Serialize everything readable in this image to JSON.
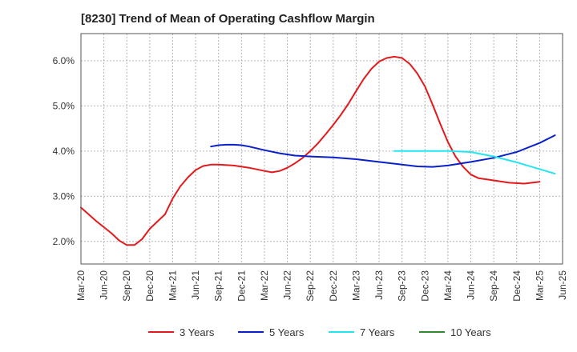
{
  "title": "[8230]  Trend of Mean of Operating Cashflow Margin",
  "chart_data": {
    "type": "line",
    "title": "[8230]  Trend of Mean of Operating Cashflow Margin",
    "xlabel": "",
    "ylabel": "",
    "x_ticks": [
      "Mar-20",
      "Jun-20",
      "Sep-20",
      "Dec-20",
      "Mar-21",
      "Jun-21",
      "Sep-21",
      "Dec-21",
      "Mar-22",
      "Jun-22",
      "Sep-22",
      "Dec-22",
      "Mar-23",
      "Jun-23",
      "Sep-23",
      "Dec-23",
      "Mar-24",
      "Jun-24",
      "Sep-24",
      "Dec-24",
      "Mar-25",
      "Jun-25"
    ],
    "y_ticks": [
      "2.0%",
      "3.0%",
      "4.0%",
      "5.0%",
      "6.0%"
    ],
    "ylim": [
      1.5,
      6.6
    ],
    "grid": true,
    "legend_position": "bottom",
    "series": [
      {
        "name": "3 Years",
        "color": "#e31a1c",
        "points": [
          [
            "Mar-20",
            2.75
          ],
          [
            "May-20",
            2.45
          ],
          [
            "Jul-20",
            2.18
          ],
          [
            "Aug-20",
            2.02
          ],
          [
            "Sep-20",
            1.92
          ],
          [
            "Oct-20",
            1.92
          ],
          [
            "Nov-20",
            2.05
          ],
          [
            "Dec-20",
            2.28
          ],
          [
            "Feb-21",
            2.6
          ],
          [
            "Mar-21",
            2.95
          ],
          [
            "Apr-21",
            3.22
          ],
          [
            "May-21",
            3.42
          ],
          [
            "Jun-21",
            3.58
          ],
          [
            "Jul-21",
            3.67
          ],
          [
            "Aug-21",
            3.7
          ],
          [
            "Sep-21",
            3.7
          ],
          [
            "Nov-21",
            3.68
          ],
          [
            "Jan-22",
            3.63
          ],
          [
            "Mar-22",
            3.56
          ],
          [
            "Apr-22",
            3.53
          ],
          [
            "May-22",
            3.56
          ],
          [
            "Jun-22",
            3.63
          ],
          [
            "Jul-22",
            3.73
          ],
          [
            "Aug-22",
            3.85
          ],
          [
            "Sep-22",
            4.0
          ],
          [
            "Oct-22",
            4.17
          ],
          [
            "Nov-22",
            4.37
          ],
          [
            "Dec-22",
            4.58
          ],
          [
            "Jan-23",
            4.8
          ],
          [
            "Feb-23",
            5.05
          ],
          [
            "Mar-23",
            5.33
          ],
          [
            "Apr-23",
            5.6
          ],
          [
            "May-23",
            5.82
          ],
          [
            "Jun-23",
            5.98
          ],
          [
            "Jul-23",
            6.06
          ],
          [
            "Aug-23",
            6.09
          ],
          [
            "Sep-23",
            6.06
          ],
          [
            "Oct-23",
            5.93
          ],
          [
            "Nov-23",
            5.72
          ],
          [
            "Dec-23",
            5.43
          ],
          [
            "Jan-24",
            5.03
          ],
          [
            "Feb-24",
            4.6
          ],
          [
            "Mar-24",
            4.2
          ],
          [
            "Apr-24",
            3.88
          ],
          [
            "May-24",
            3.65
          ],
          [
            "Jun-24",
            3.48
          ],
          [
            "Jul-24",
            3.4
          ],
          [
            "Sep-24",
            3.35
          ],
          [
            "Nov-24",
            3.3
          ],
          [
            "Jan-25",
            3.28
          ],
          [
            "Mar-25",
            3.32
          ]
        ]
      },
      {
        "name": "5 Years",
        "color": "#0a1fcc",
        "points": [
          [
            "Aug-21",
            4.1
          ],
          [
            "Sep-21",
            4.13
          ],
          [
            "Oct-21",
            4.14
          ],
          [
            "Nov-21",
            4.14
          ],
          [
            "Dec-21",
            4.13
          ],
          [
            "Jan-22",
            4.1
          ],
          [
            "Mar-22",
            4.02
          ],
          [
            "May-22",
            3.95
          ],
          [
            "Jul-22",
            3.9
          ],
          [
            "Sep-22",
            3.88
          ],
          [
            "Dec-22",
            3.86
          ],
          [
            "Mar-23",
            3.82
          ],
          [
            "Jun-23",
            3.76
          ],
          [
            "Sep-23",
            3.7
          ],
          [
            "Nov-23",
            3.66
          ],
          [
            "Jan-24",
            3.65
          ],
          [
            "Mar-24",
            3.68
          ],
          [
            "Jun-24",
            3.76
          ],
          [
            "Sep-24",
            3.85
          ],
          [
            "Dec-24",
            3.98
          ],
          [
            "Mar-25",
            4.18
          ],
          [
            "May-25",
            4.35
          ]
        ]
      },
      {
        "name": "7 Years",
        "color": "#22e5f0",
        "points": [
          [
            "Aug-23",
            4.0
          ],
          [
            "Dec-23",
            4.0
          ],
          [
            "Mar-24",
            4.0
          ],
          [
            "Jun-24",
            3.98
          ],
          [
            "Sep-24",
            3.88
          ],
          [
            "Dec-24",
            3.75
          ],
          [
            "Mar-25",
            3.6
          ],
          [
            "May-25",
            3.5
          ]
        ]
      },
      {
        "name": "10 Years",
        "color": "#2e8b2e",
        "points": []
      }
    ]
  }
}
